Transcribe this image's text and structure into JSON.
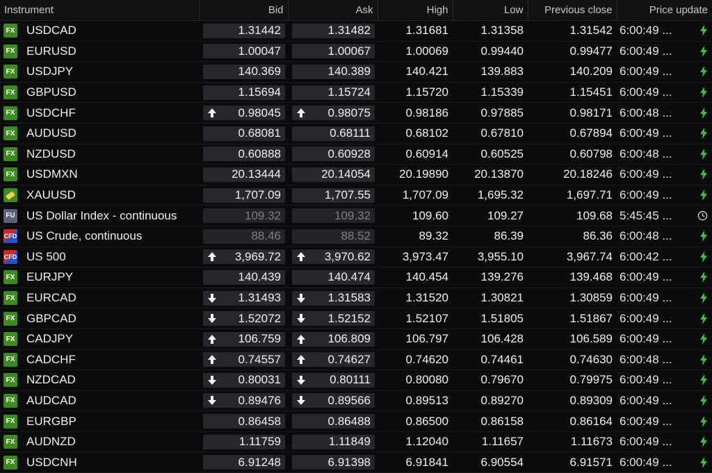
{
  "columns": {
    "instrument": "Instrument",
    "bid": "Bid",
    "ask": "Ask",
    "high": "High",
    "low": "Low",
    "previous_close": "Previous close",
    "price_update": "Price update"
  },
  "colors": {
    "fx_badge": "#3d8b1f",
    "price_box": "#26282d",
    "bolt_green": "#3cbf3c",
    "background": "#0c0c0e"
  },
  "rows": [
    {
      "badge": "FX",
      "badge_type": "fx",
      "name": "USDCAD",
      "bid": "1.31442",
      "ask": "1.31482",
      "high": "1.31681",
      "low": "1.31358",
      "prev": "1.31542",
      "time": "6:00:49 ...",
      "status": "bolt",
      "arrow": "none",
      "dim": false
    },
    {
      "badge": "FX",
      "badge_type": "fx",
      "name": "EURUSD",
      "bid": "1.00047",
      "ask": "1.00067",
      "high": "1.00069",
      "low": "0.99440",
      "prev": "0.99477",
      "time": "6:00:49 ...",
      "status": "bolt",
      "arrow": "none",
      "dim": false
    },
    {
      "badge": "FX",
      "badge_type": "fx",
      "name": "USDJPY",
      "bid": "140.369",
      "ask": "140.389",
      "high": "140.421",
      "low": "139.883",
      "prev": "140.209",
      "time": "6:00:49 ...",
      "status": "bolt",
      "arrow": "none",
      "dim": false
    },
    {
      "badge": "FX",
      "badge_type": "fx",
      "name": "GBPUSD",
      "bid": "1.15694",
      "ask": "1.15724",
      "high": "1.15720",
      "low": "1.15339",
      "prev": "1.15451",
      "time": "6:00:49 ...",
      "status": "bolt",
      "arrow": "none",
      "dim": false
    },
    {
      "badge": "FX",
      "badge_type": "fx",
      "name": "USDCHF",
      "bid": "0.98045",
      "ask": "0.98075",
      "high": "0.98186",
      "low": "0.97885",
      "prev": "0.98171",
      "time": "6:00:48 ...",
      "status": "bolt",
      "arrow": "up",
      "dim": false
    },
    {
      "badge": "FX",
      "badge_type": "fx",
      "name": "AUDUSD",
      "bid": "0.68081",
      "ask": "0.68111",
      "high": "0.68102",
      "low": "0.67810",
      "prev": "0.67894",
      "time": "6:00:49 ...",
      "status": "bolt",
      "arrow": "none",
      "dim": false
    },
    {
      "badge": "FX",
      "badge_type": "fx",
      "name": "NZDUSD",
      "bid": "0.60888",
      "ask": "0.60928",
      "high": "0.60914",
      "low": "0.60525",
      "prev": "0.60798",
      "time": "6:00:48 ...",
      "status": "bolt",
      "arrow": "none",
      "dim": false
    },
    {
      "badge": "FX",
      "badge_type": "fx",
      "name": "USDMXN",
      "bid": "20.13444",
      "ask": "20.14054",
      "high": "20.19890",
      "low": "20.13870",
      "prev": "20.18246",
      "time": "6:00:49 ...",
      "status": "bolt",
      "arrow": "none",
      "dim": false
    },
    {
      "badge": "",
      "badge_type": "gold",
      "name": "XAUUSD",
      "bid": "1,707.09",
      "ask": "1,707.55",
      "high": "1,707.09",
      "low": "1,695.32",
      "prev": "1,697.71",
      "time": "6:00:49 ...",
      "status": "bolt",
      "arrow": "none",
      "dim": false
    },
    {
      "badge": "FU",
      "badge_type": "fu",
      "name": "US Dollar Index - continuous",
      "bid": "109.32",
      "ask": "109.32",
      "high": "109.60",
      "low": "109.27",
      "prev": "109.68",
      "time": "5:45:45 ...",
      "status": "clock",
      "arrow": "none",
      "dim": true
    },
    {
      "badge": "CFD",
      "badge_type": "cfd",
      "name": "US Crude, continuous",
      "bid": "88.46",
      "ask": "88.52",
      "high": "89.32",
      "low": "86.39",
      "prev": "86.36",
      "time": "6:00:48 ...",
      "status": "bolt",
      "arrow": "none",
      "dim": true
    },
    {
      "badge": "CFD",
      "badge_type": "cfd",
      "name": "US 500",
      "bid": "3,969.72",
      "ask": "3,970.62",
      "high": "3,973.47",
      "low": "3,955.10",
      "prev": "3,967.74",
      "time": "6:00:42 ...",
      "status": "bolt",
      "arrow": "up",
      "dim": false
    },
    {
      "badge": "FX",
      "badge_type": "fx",
      "name": "EURJPY",
      "bid": "140.439",
      "ask": "140.474",
      "high": "140.454",
      "low": "139.276",
      "prev": "139.468",
      "time": "6:00:49 ...",
      "status": "bolt",
      "arrow": "none",
      "dim": false
    },
    {
      "badge": "FX",
      "badge_type": "fx",
      "name": "EURCAD",
      "bid": "1.31493",
      "ask": "1.31583",
      "high": "1.31520",
      "low": "1.30821",
      "prev": "1.30859",
      "time": "6:00:49 ...",
      "status": "bolt",
      "arrow": "down",
      "dim": false
    },
    {
      "badge": "FX",
      "badge_type": "fx",
      "name": "GBPCAD",
      "bid": "1.52072",
      "ask": "1.52152",
      "high": "1.52107",
      "low": "1.51805",
      "prev": "1.51867",
      "time": "6:00:49 ...",
      "status": "bolt",
      "arrow": "down",
      "dim": false
    },
    {
      "badge": "FX",
      "badge_type": "fx",
      "name": "CADJPY",
      "bid": "106.759",
      "ask": "106.809",
      "high": "106.797",
      "low": "106.428",
      "prev": "106.589",
      "time": "6:00:49 ...",
      "status": "bolt",
      "arrow": "up",
      "dim": false
    },
    {
      "badge": "FX",
      "badge_type": "fx",
      "name": "CADCHF",
      "bid": "0.74557",
      "ask": "0.74627",
      "high": "0.74620",
      "low": "0.74461",
      "prev": "0.74630",
      "time": "6:00:48 ...",
      "status": "bolt",
      "arrow": "up",
      "dim": false
    },
    {
      "badge": "FX",
      "badge_type": "fx",
      "name": "NZDCAD",
      "bid": "0.80031",
      "ask": "0.80111",
      "high": "0.80080",
      "low": "0.79670",
      "prev": "0.79975",
      "time": "6:00:49 ...",
      "status": "bolt",
      "arrow": "down",
      "dim": false
    },
    {
      "badge": "FX",
      "badge_type": "fx",
      "name": "AUDCAD",
      "bid": "0.89476",
      "ask": "0.89566",
      "high": "0.89513",
      "low": "0.89270",
      "prev": "0.89309",
      "time": "6:00:49 ...",
      "status": "bolt",
      "arrow": "down",
      "dim": false
    },
    {
      "badge": "FX",
      "badge_type": "fx",
      "name": "EURGBP",
      "bid": "0.86458",
      "ask": "0.86488",
      "high": "0.86500",
      "low": "0.86158",
      "prev": "0.86164",
      "time": "6:00:49 ...",
      "status": "bolt",
      "arrow": "none",
      "dim": false
    },
    {
      "badge": "FX",
      "badge_type": "fx",
      "name": "AUDNZD",
      "bid": "1.11759",
      "ask": "1.11849",
      "high": "1.12040",
      "low": "1.11657",
      "prev": "1.11673",
      "time": "6:00:49 ...",
      "status": "bolt",
      "arrow": "none",
      "dim": false
    },
    {
      "badge": "FX",
      "badge_type": "fx",
      "name": "USDCNH",
      "bid": "6.91248",
      "ask": "6.91398",
      "high": "6.91841",
      "low": "6.90554",
      "prev": "6.91571",
      "time": "6:00:49 ...",
      "status": "bolt",
      "arrow": "none",
      "dim": false
    }
  ]
}
